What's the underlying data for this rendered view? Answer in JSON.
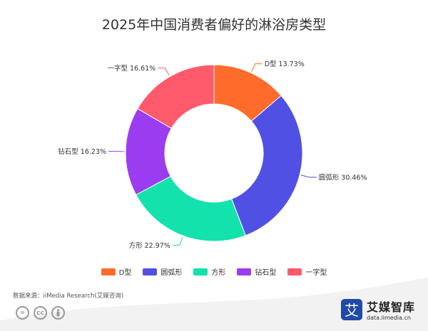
{
  "chart_data": {
    "type": "pie",
    "donut": true,
    "title": "2025年中国消费者偏好的淋浴房类型",
    "categories": [
      "D型",
      "圆弧形",
      "方形",
      "钻石型",
      "一字型"
    ],
    "values": [
      13.73,
      30.46,
      22.97,
      16.23,
      16.61
    ],
    "labels": [
      "D型 13.73%",
      "圆弧形 30.46%",
      "方形 22.97%",
      "钻石型 16.23%",
      "一字型 16.61%"
    ],
    "colors": [
      "#ff6b2b",
      "#5150e4",
      "#13e2ad",
      "#9b3cf0",
      "#ff5a6b"
    ],
    "unit": "%",
    "legend_position": "bottom"
  },
  "footer": {
    "source": "数据来源：iiMedia Research(艾媒咨询)",
    "brand_name": "艾媒智库",
    "brand_url": "data.iimedia.cn",
    "brand_glyph": "艾"
  },
  "icons": [
    "equals-icon",
    "cc-icon",
    "person-icon"
  ]
}
